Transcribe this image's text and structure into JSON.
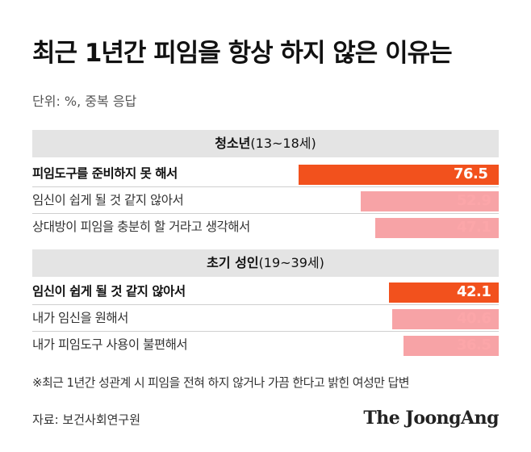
{
  "title": "최근 1년간 피임을 항상 하지 않은 이유는",
  "unit": "단위: %, 중복 응답",
  "footnote": "※최근 1년간 성관계 시 피임을 전혀 하지 않거나 가끔 한다고 밝힌 여성만 답변",
  "source": "자료: 보건사회연구원",
  "brand": "The JoongAng",
  "colors": {
    "highlight": "#f2511d",
    "normal": "#f7a3a6",
    "header_bg": "#e4e4e4"
  },
  "chart_data": [
    {
      "type": "bar",
      "orientation": "horizontal",
      "group_name": "청소년",
      "group_range": "(13~18세)",
      "categories": [
        "피임도구를 준비하지 못 해서",
        "임신이 쉽게 될 것 같지 않아서",
        "상대방이 피임을 충분히 할 거라고 생각해서"
      ],
      "values": [
        76.5,
        52.9,
        47.1
      ],
      "xlim": [
        0,
        100
      ]
    },
    {
      "type": "bar",
      "orientation": "horizontal",
      "group_name": "초기 성인",
      "group_range": "(19~39세)",
      "categories": [
        "임신이 쉽게 될 것 같지 않아서",
        "내가 임신을 원해서",
        "내가 피임도구 사용이 불편해서"
      ],
      "values": [
        42.1,
        40.6,
        36.5
      ],
      "xlim": [
        0,
        100
      ]
    }
  ]
}
